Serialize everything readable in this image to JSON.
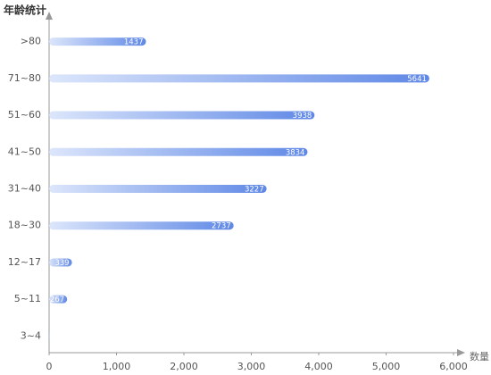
{
  "chart_data": {
    "type": "bar",
    "orientation": "horizontal",
    "title": "年龄统计",
    "x_label": "数量",
    "categories": [
      ">80",
      "71~80",
      "51~60",
      "41~50",
      "31~40",
      "18~30",
      "12~17",
      "5~11",
      "3~4"
    ],
    "values": [
      1437,
      5641,
      3938,
      3834,
      3227,
      2737,
      339,
      267,
      5
    ],
    "colors": [
      "#dce6fb",
      "#5f88e6"
    ],
    "xlim": [
      0,
      6000
    ],
    "xticks": [
      0,
      {
        "value": 1000,
        "label": "1,000"
      },
      {
        "value": 2000,
        "label": "2,000"
      },
      {
        "value": 3000,
        "label": "3,000"
      },
      {
        "value": 4000,
        "label": "4,000"
      },
      {
        "value": 5000,
        "label": "5,000"
      },
      {
        "value": 6000,
        "label": "6,000"
      }
    ]
  }
}
